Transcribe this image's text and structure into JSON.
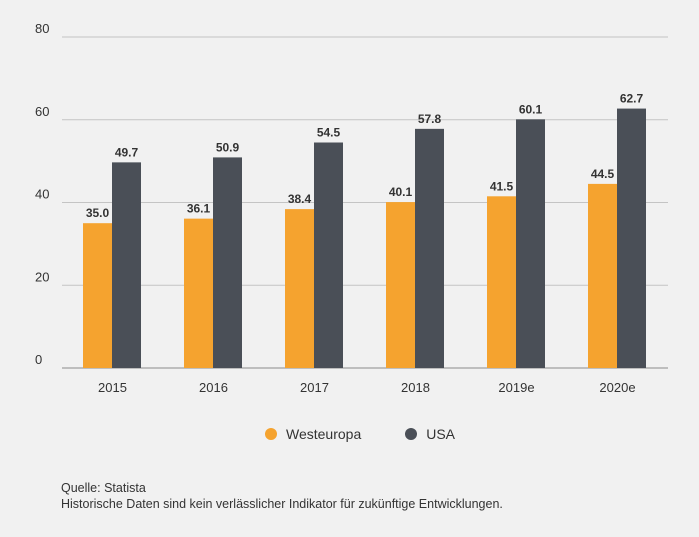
{
  "chart_data": {
    "type": "bar",
    "categories": [
      "2015",
      "2016",
      "2017",
      "2018",
      "2019e",
      "2020e"
    ],
    "series": [
      {
        "name": "Westeuropa",
        "color": "#f5a32f",
        "values": [
          35.0,
          36.1,
          38.4,
          40.1,
          41.5,
          44.5
        ],
        "labels": [
          "35.0",
          "36.1",
          "38.4",
          "40.1",
          "41.5",
          "44.5"
        ]
      },
      {
        "name": "USA",
        "color": "#4a4f57",
        "values": [
          49.7,
          50.9,
          54.5,
          57.8,
          60.1,
          62.7
        ],
        "labels": [
          "49.7",
          "50.9",
          "54.5",
          "57.8",
          "60.1",
          "62.7"
        ]
      }
    ],
    "yticks": [
      "0",
      "20",
      "40",
      "60",
      "80"
    ],
    "ytick_values": [
      0,
      20,
      40,
      60,
      80
    ],
    "ylim": [
      0,
      80
    ],
    "grid": true,
    "legend_position": "bottom-center"
  },
  "legend": [
    {
      "label": "Westeuropa",
      "color": "#f5a32f"
    },
    {
      "label": "USA",
      "color": "#4a4f57"
    }
  ],
  "footer": {
    "source": "Quelle: Statista",
    "disclaimer": "Historische Daten sind kein verlässlicher Indikator für zukünftige Entwicklungen."
  }
}
